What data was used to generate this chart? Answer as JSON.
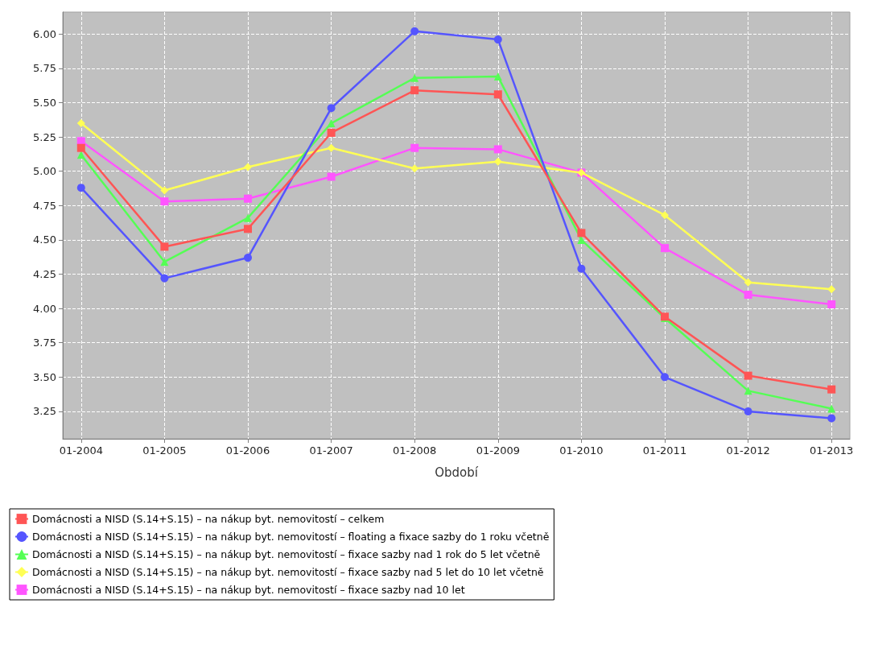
{
  "chart_data": {
    "type": "line",
    "xlabel": "Období",
    "categories": [
      "01-2004",
      "01-2005",
      "01-2006",
      "01-2007",
      "01-2008",
      "01-2009",
      "01-2010",
      "01-2011",
      "01-2012",
      "01-2013"
    ],
    "ylim": [
      3.05,
      6.16
    ],
    "yticks": [
      3.25,
      {
        "value": 3.5,
        "label": "3.50"
      },
      3.75,
      {
        "value": 4,
        "label": "4.00"
      },
      4.25,
      {
        "value": 4.5,
        "label": "4.50"
      },
      4.75,
      {
        "value": 5,
        "label": "5.00"
      },
      5.25,
      {
        "value": 5.5,
        "label": "5.50"
      },
      5.75,
      {
        "value": 6,
        "label": "6.00"
      }
    ],
    "grid": true,
    "legend": "bottom",
    "line_style": "solid",
    "series": [
      {
        "name": "Domácnosti a NISD (S.14+S.15) – na nákup byt. nemovitostí – celkem",
        "color": "#ff5555",
        "marker": "square",
        "values": [
          5.17,
          4.45,
          4.58,
          5.28,
          5.59,
          5.56,
          4.55,
          3.94,
          3.51,
          3.41
        ]
      },
      {
        "name": "Domácnosti a NISD (S.14+S.15) – na nákup byt. nemovitostí – floating a fixace sazby do 1 roku včetně",
        "color": "#5555ff",
        "marker": "circle",
        "values": [
          4.88,
          4.22,
          4.37,
          5.46,
          6.02,
          5.96,
          4.29,
          3.5,
          3.25,
          3.2
        ]
      },
      {
        "name": "Domácnosti a NISD (S.14+S.15) – na nákup byt. nemovitostí – fixace sazby nad 1 rok do 5 let včetně",
        "color": "#55ff55",
        "marker": "triangle",
        "values": [
          5.12,
          4.34,
          4.66,
          5.35,
          5.68,
          5.69,
          4.5,
          3.93,
          3.4,
          3.27
        ]
      },
      {
        "name": "Domácnosti a NISD (S.14+S.15) – na nákup byt. nemovitostí – fixace sazby nad 5 let do 10 let včetně",
        "color": "#ffff55",
        "marker": "diamond",
        "values": [
          5.35,
          4.86,
          5.03,
          5.17,
          5.02,
          5.07,
          4.99,
          4.68,
          4.19,
          4.14
        ]
      },
      {
        "name": "Domácnosti a NISD (S.14+S.15) – na nákup byt. nemovitostí – fixace sazby nad 10 let",
        "color": "#ff55ff",
        "marker": "square",
        "values": [
          5.22,
          4.78,
          4.8,
          4.96,
          5.17,
          5.16,
          4.99,
          4.44,
          4.1,
          4.03
        ]
      }
    ]
  }
}
